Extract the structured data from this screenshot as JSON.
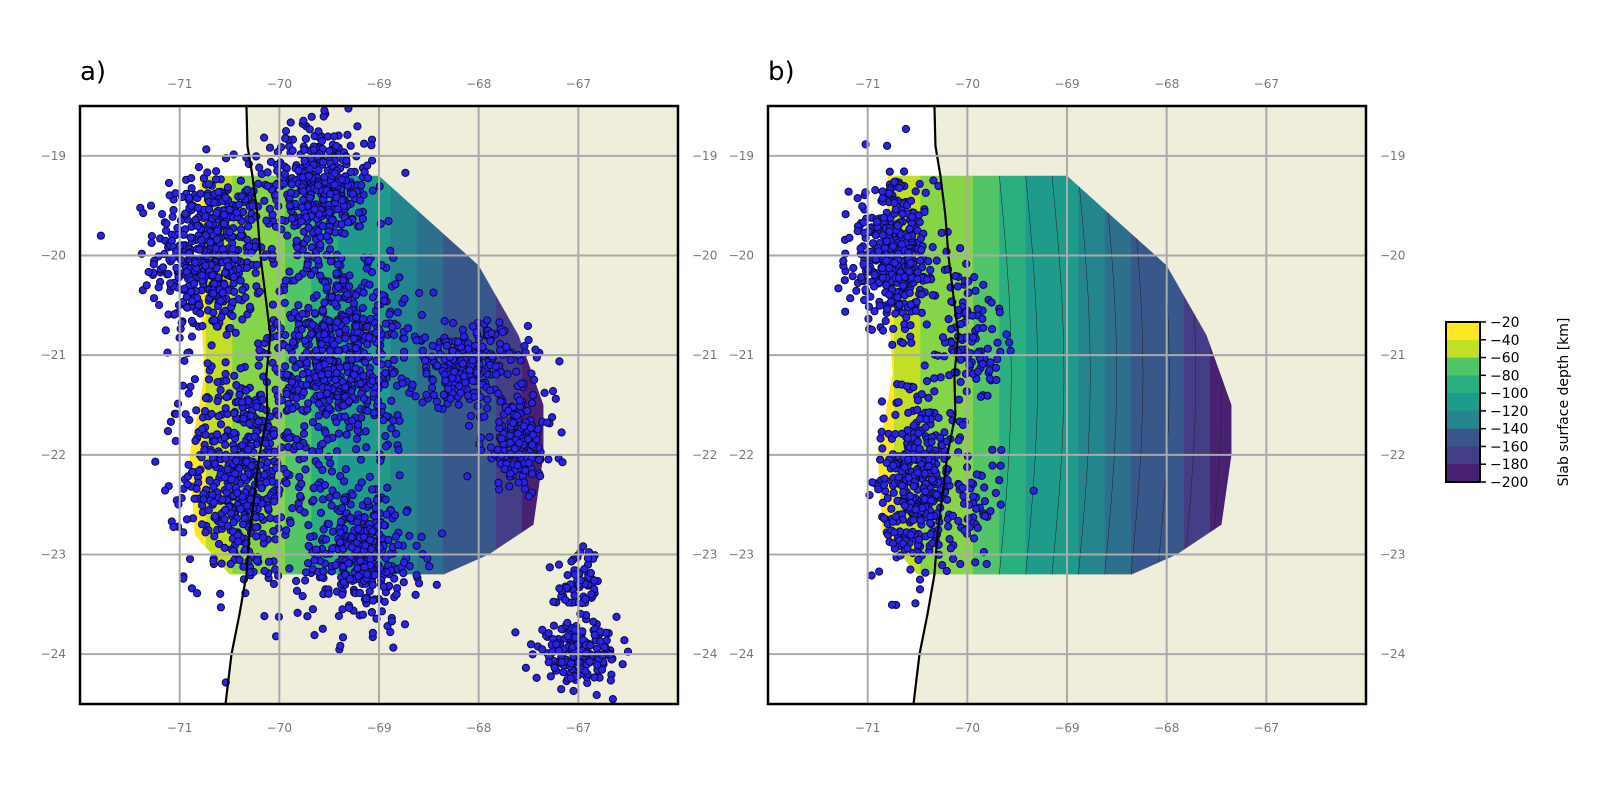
{
  "figure": {
    "panels": [
      {
        "id": "a",
        "label": "a)",
        "show_slab_full": false,
        "quake_set": "all"
      },
      {
        "id": "b",
        "label": "b)",
        "show_slab_full": true,
        "quake_set": "coastal"
      }
    ],
    "lon_ticks": [
      -71,
      -70,
      -69,
      -68,
      -67
    ],
    "lon_tick_labels": [
      "−71",
      "−70",
      "−69",
      "−68",
      "−67"
    ],
    "lat_ticks": [
      -19,
      -20,
      -21,
      -22,
      -23,
      -24
    ],
    "lat_tick_labels": [
      "−19",
      "−20",
      "−21",
      "−22",
      "−23",
      "−24"
    ],
    "extent": {
      "lon_min": -72,
      "lon_max": -66,
      "lat_min": -24.5,
      "lat_max": -18.5
    },
    "colors": {
      "land": "#efeedb",
      "sea": "#ffffff",
      "coast": "#000000",
      "quake_fill": "#2a22e8",
      "quake_edge": "#0b0b40",
      "grid": "#aaaaaa"
    },
    "colorbar": {
      "label": "Slab surface depth [km]",
      "ticks": [
        -20,
        -40,
        -60,
        -80,
        -100,
        -120,
        -140,
        -160,
        -180,
        -200
      ],
      "tick_labels": [
        "−20",
        "−40",
        "−60",
        "−80",
        "−100",
        "−120",
        "−140",
        "−160",
        "−180",
        "−200"
      ],
      "colormap": "viridis",
      "range": [
        -200,
        -20
      ]
    }
  }
}
